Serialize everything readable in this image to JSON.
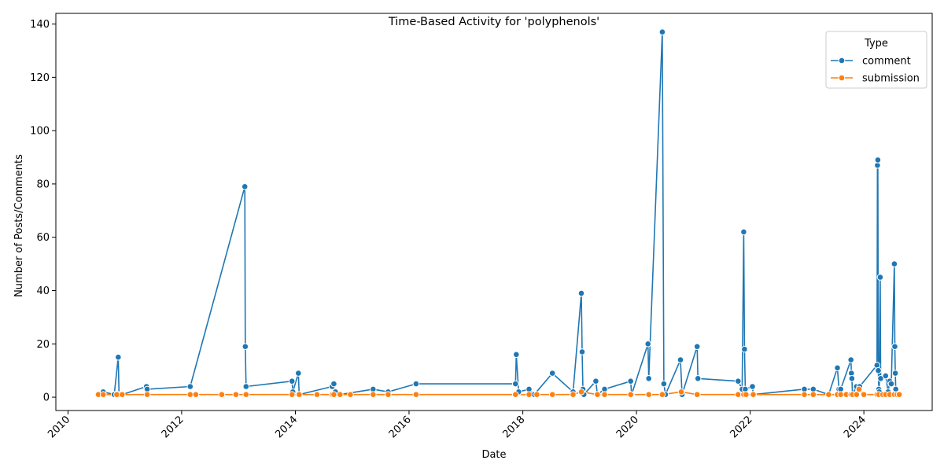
{
  "chart_data": {
    "type": "line",
    "title": "Time-Based Activity for 'polyphenols'",
    "xlabel": "Date",
    "ylabel": "Number of Posts/Comments",
    "x_ticks": [
      "2010",
      "2012",
      "2014",
      "2016",
      "2018",
      "2020",
      "2022",
      "2024"
    ],
    "y_ticks": [
      0,
      20,
      40,
      60,
      80,
      100,
      120,
      140
    ],
    "xlim": [
      "2009-10-15",
      "2025-03-15"
    ],
    "ylim": [
      -5,
      144
    ],
    "grid": false,
    "legend": {
      "title": "Type",
      "placement": "top-right"
    },
    "series": [
      {
        "name": "comment",
        "color": "#1f77b4",
        "points": [
          [
            "2010-08-15",
            2
          ],
          [
            "2010-10-25",
            1
          ],
          [
            "2010-11-20",
            15
          ],
          [
            "2010-11-25",
            1
          ],
          [
            "2010-12-15",
            1
          ],
          [
            "2011-05-20",
            4
          ],
          [
            "2011-05-25",
            3
          ],
          [
            "2012-02-25",
            4
          ],
          [
            "2013-02-10",
            79
          ],
          [
            "2013-02-13",
            19
          ],
          [
            "2013-02-18",
            4
          ],
          [
            "2013-12-10",
            6
          ],
          [
            "2013-12-15",
            2
          ],
          [
            "2014-01-20",
            9
          ],
          [
            "2014-01-25",
            1
          ],
          [
            "2014-08-25",
            4
          ],
          [
            "2014-09-05",
            5
          ],
          [
            "2014-09-15",
            2
          ],
          [
            "2014-10-15",
            1
          ],
          [
            "2015-05-15",
            3
          ],
          [
            "2015-08-20",
            2
          ],
          [
            "2016-02-15",
            5
          ],
          [
            "2017-11-15",
            5
          ],
          [
            "2017-11-20",
            16
          ],
          [
            "2017-12-05",
            2
          ],
          [
            "2018-02-10",
            3
          ],
          [
            "2018-03-15",
            1
          ],
          [
            "2018-07-10",
            9
          ],
          [
            "2018-11-20",
            2
          ],
          [
            "2019-01-12",
            39
          ],
          [
            "2019-01-17",
            17
          ],
          [
            "2019-01-22",
            3
          ],
          [
            "2019-01-28",
            1
          ],
          [
            "2019-04-15",
            6
          ],
          [
            "2019-04-25",
            1
          ],
          [
            "2019-06-10",
            3
          ],
          [
            "2019-11-25",
            6
          ],
          [
            "2019-12-01",
            1
          ],
          [
            "2020-03-15",
            20
          ],
          [
            "2020-03-20",
            7
          ],
          [
            "2020-06-15",
            137
          ],
          [
            "2020-06-25",
            5
          ],
          [
            "2020-07-05",
            1
          ],
          [
            "2020-10-10",
            14
          ],
          [
            "2020-10-20",
            1
          ],
          [
            "2021-01-25",
            19
          ],
          [
            "2021-01-30",
            7
          ],
          [
            "2021-10-15",
            6
          ],
          [
            "2021-11-10",
            3
          ],
          [
            "2021-11-20",
            62
          ],
          [
            "2021-11-25",
            18
          ],
          [
            "2021-11-30",
            3
          ],
          [
            "2022-01-15",
            4
          ],
          [
            "2022-01-20",
            1
          ],
          [
            "2022-12-15",
            3
          ],
          [
            "2023-02-10",
            3
          ],
          [
            "2023-05-20",
            1
          ],
          [
            "2023-07-15",
            11
          ],
          [
            "2023-07-25",
            3
          ],
          [
            "2023-08-05",
            3
          ],
          [
            "2023-10-10",
            14
          ],
          [
            "2023-10-13",
            9
          ],
          [
            "2023-10-16",
            7
          ],
          [
            "2023-10-20",
            1
          ],
          [
            "2023-11-15",
            4
          ],
          [
            "2023-12-05",
            4
          ],
          [
            "2024-03-25",
            12
          ],
          [
            "2024-03-28",
            87
          ],
          [
            "2024-03-31",
            89
          ],
          [
            "2024-04-03",
            10
          ],
          [
            "2024-04-06",
            3
          ],
          [
            "2024-04-09",
            2
          ],
          [
            "2024-04-15",
            45
          ],
          [
            "2024-04-18",
            7
          ],
          [
            "2024-05-20",
            8
          ],
          [
            "2024-06-05",
            2
          ],
          [
            "2024-06-15",
            6
          ],
          [
            "2024-06-25",
            5
          ],
          [
            "2024-07-15",
            50
          ],
          [
            "2024-07-18",
            19
          ],
          [
            "2024-07-21",
            9
          ],
          [
            "2024-07-24",
            3
          ],
          [
            "2024-08-15",
            1
          ]
        ]
      },
      {
        "name": "submission",
        "color": "#ff7f0e",
        "points": [
          [
            "2010-07-15",
            1
          ],
          [
            "2010-08-15",
            1
          ],
          [
            "2010-11-10",
            1
          ],
          [
            "2010-12-15",
            1
          ],
          [
            "2011-05-25",
            1
          ],
          [
            "2012-02-25",
            1
          ],
          [
            "2012-04-01",
            1
          ],
          [
            "2012-09-15",
            1
          ],
          [
            "2012-12-15",
            1
          ],
          [
            "2013-02-18",
            1
          ],
          [
            "2013-12-10",
            1
          ],
          [
            "2014-01-25",
            1
          ],
          [
            "2014-05-20",
            1
          ],
          [
            "2014-08-25",
            1
          ],
          [
            "2014-09-05",
            1
          ],
          [
            "2014-10-15",
            1
          ],
          [
            "2014-12-20",
            1
          ],
          [
            "2015-05-15",
            1
          ],
          [
            "2015-08-20",
            1
          ],
          [
            "2016-02-15",
            1
          ],
          [
            "2017-11-15",
            1
          ],
          [
            "2018-02-10",
            1
          ],
          [
            "2018-04-01",
            1
          ],
          [
            "2018-07-10",
            1
          ],
          [
            "2018-11-20",
            1
          ],
          [
            "2019-01-12",
            2
          ],
          [
            "2019-04-25",
            1
          ],
          [
            "2019-06-10",
            1
          ],
          [
            "2019-11-25",
            1
          ],
          [
            "2020-03-20",
            1
          ],
          [
            "2020-06-15",
            1
          ],
          [
            "2020-10-15",
            2
          ],
          [
            "2021-01-25",
            1
          ],
          [
            "2021-10-15",
            1
          ],
          [
            "2021-11-20",
            1
          ],
          [
            "2021-12-05",
            1
          ],
          [
            "2022-01-20",
            1
          ],
          [
            "2022-12-15",
            1
          ],
          [
            "2023-02-10",
            1
          ],
          [
            "2023-05-20",
            1
          ],
          [
            "2023-07-15",
            1
          ],
          [
            "2023-08-05",
            1
          ],
          [
            "2023-09-10",
            1
          ],
          [
            "2023-10-10",
            1
          ],
          [
            "2023-10-20",
            1
          ],
          [
            "2023-11-15",
            1
          ],
          [
            "2023-12-01",
            3
          ],
          [
            "2024-01-01",
            1
          ],
          [
            "2024-03-25",
            1
          ],
          [
            "2024-04-06",
            1
          ],
          [
            "2024-05-01",
            1
          ],
          [
            "2024-05-20",
            1
          ],
          [
            "2024-06-15",
            1
          ],
          [
            "2024-07-15",
            1
          ],
          [
            "2024-08-01",
            1
          ],
          [
            "2024-08-15",
            1
          ]
        ]
      }
    ]
  }
}
